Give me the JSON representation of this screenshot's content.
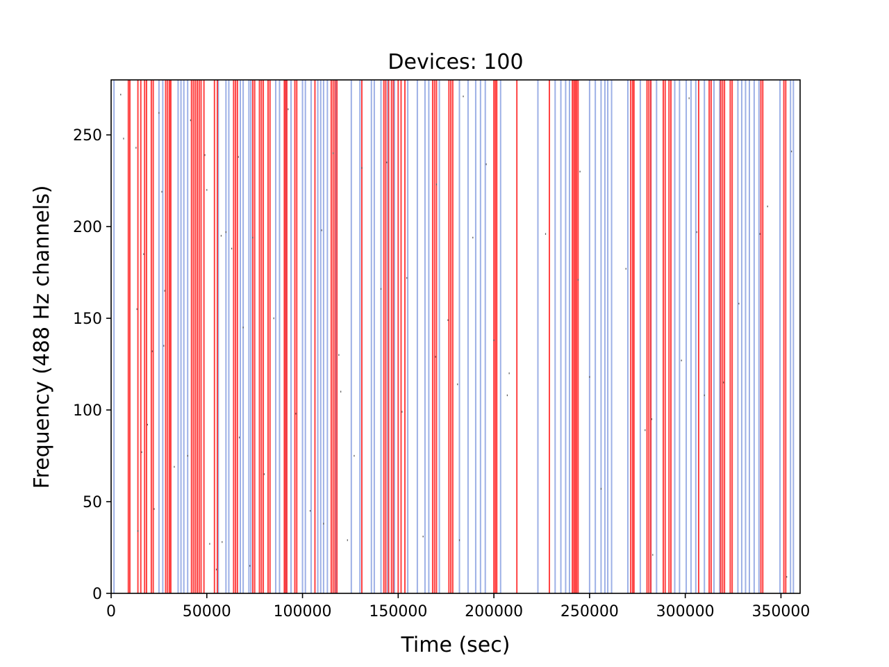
{
  "chart_data": {
    "type": "scatter",
    "title": "Devices: 100",
    "xlabel": "Time (sec)",
    "ylabel": "Frequency (488 Hz channels)",
    "xlim": [
      0,
      360000
    ],
    "ylim": [
      0,
      280
    ],
    "xticks": [
      0,
      50000,
      100000,
      150000,
      200000,
      250000,
      300000,
      350000
    ],
    "yticks": [
      0,
      50,
      100,
      150,
      200,
      250
    ],
    "grid": false,
    "legend": "none",
    "colors": {
      "blue": "#9db0e6",
      "red": "#ff2020",
      "dot": "#555555"
    },
    "series": [
      {
        "color": "blue",
        "x": [
          1500,
          25000,
          27000,
          35000,
          36500,
          38000,
          40000,
          56000,
          60000,
          61500,
          67500,
          69000,
          72000,
          73000,
          86000,
          88000,
          91500,
          94000,
          100000,
          101500,
          104500,
          108000,
          109500,
          111000,
          113000,
          117500,
          125500,
          130000,
          136000,
          137500,
          141000,
          144500,
          148000,
          155000,
          160000,
          164000,
          166000,
          171500,
          182000,
          186500,
          190500,
          193000,
          195500,
          203500,
          223000,
          232000,
          235000,
          237500,
          239500,
          250000,
          253000,
          256000,
          258000,
          259500,
          261500,
          270000,
          276500,
          282000,
          285000,
          294500,
          297000,
          300500,
          303000,
          305500,
          310000,
          315000,
          318000,
          327500,
          329500,
          331500,
          333500,
          336000,
          338500,
          349500,
          355000,
          356500
        ]
      },
      {
        "color": "red",
        "x": [
          9000,
          9800,
          14000,
          15500,
          17500,
          18500,
          21000,
          22000,
          28500,
          29500,
          30500,
          31200,
          42000,
          43000,
          44000,
          45000,
          46000,
          47000,
          48500,
          54000,
          55500,
          64000,
          65000,
          66000,
          74000,
          75000,
          77500,
          78500,
          79500,
          82000,
          83000,
          90500,
          91000,
          91800,
          96000,
          97000,
          106500,
          115000,
          116000,
          117000,
          118000,
          131000,
          142500,
          143500,
          145000,
          146500,
          147500,
          150000,
          151500,
          153500,
          168000,
          169000,
          170000,
          176500,
          177500,
          178500,
          200000,
          200800,
          201500,
          212000,
          229000,
          241000,
          241800,
          242500,
          243200,
          244000,
          271500,
          272500,
          273200,
          280000,
          281000,
          282000,
          288500,
          289500,
          291500,
          292500,
          307000,
          312500,
          313500,
          318500,
          319500,
          320500,
          323500,
          324500,
          339500,
          340500,
          351500,
          352500
        ]
      },
      {
        "color": "dot",
        "x": [
          5000,
          6500,
          14000,
          13500,
          13000,
          16000,
          17000,
          19000,
          21500,
          22500,
          25000,
          26500,
          27500,
          28000,
          33000,
          40000,
          41500,
          49000,
          50000,
          51500,
          55000,
          57500,
          58000,
          60000,
          63000,
          66500,
          67000,
          69000,
          72500,
          74000,
          80000,
          85000,
          92500,
          96500,
          104000,
          110000,
          111000,
          116000,
          119000,
          120000,
          123500,
          127000,
          131000,
          141000,
          144000,
          152000,
          154500,
          163000,
          169500,
          170000,
          176000,
          181000,
          182000,
          184000,
          189000,
          196000,
          200000,
          207000,
          208000,
          227000,
          244000,
          245000,
          250000,
          256000,
          269000,
          279000,
          283000,
          282500,
          298000,
          302000,
          306000,
          310000,
          320000,
          328000,
          339000,
          343000,
          353000,
          355500
        ],
        "y": [
          272,
          248,
          34,
          155,
          243,
          77,
          185,
          92,
          132,
          46,
          262,
          219,
          135,
          165,
          69,
          75,
          258,
          239,
          220,
          27,
          13,
          195,
          28,
          197,
          188,
          238,
          85,
          145,
          15,
          194,
          65,
          150,
          264,
          98,
          45,
          198,
          38,
          240,
          130,
          110,
          29,
          75,
          232,
          166,
          235,
          99,
          172,
          31,
          129,
          223,
          149,
          114,
          29,
          271,
          194,
          234,
          138,
          108,
          120,
          196,
          171,
          230,
          118,
          57,
          177,
          89,
          21,
          95,
          127,
          270,
          197,
          108,
          115,
          158,
          196,
          211,
          9,
          241
        ]
      }
    ]
  }
}
